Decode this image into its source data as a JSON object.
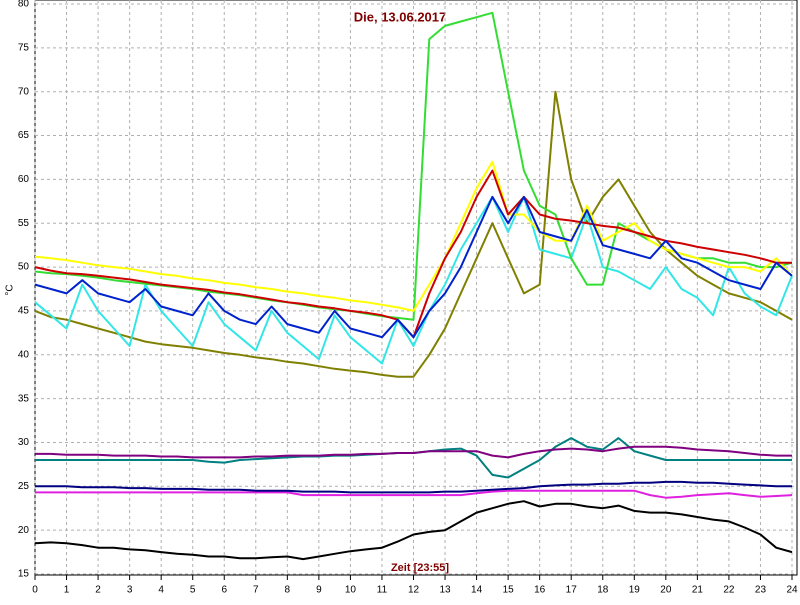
{
  "chart_data": {
    "type": "line",
    "title": "Die, 13.06.2017",
    "y_label": "°C",
    "x_label": "Zeit [23:55]",
    "x": [
      0,
      0.5,
      1,
      1.5,
      2,
      2.5,
      3,
      3.5,
      4,
      4.5,
      5,
      5.5,
      6,
      6.5,
      7,
      7.5,
      8,
      8.5,
      9,
      9.5,
      10,
      10.5,
      11,
      11.5,
      12,
      12.5,
      13,
      13.5,
      14,
      14.5,
      15,
      15.5,
      16,
      16.5,
      17,
      17.5,
      18,
      18.5,
      19,
      19.5,
      20,
      20.5,
      21,
      21.5,
      22,
      22.5,
      23,
      23.5,
      24
    ],
    "xlim": [
      0,
      24
    ],
    "xticks": [
      0,
      1,
      2,
      3,
      4,
      5,
      6,
      7,
      8,
      9,
      10,
      11,
      12,
      13,
      14,
      15,
      16,
      17,
      18,
      19,
      20,
      21,
      22,
      23,
      24
    ],
    "ylim": [
      15,
      80
    ],
    "yticks": [
      15,
      20,
      25,
      30,
      35,
      40,
      45,
      50,
      55,
      60,
      65,
      70,
      75,
      80
    ],
    "grid": true,
    "series": [
      {
        "color": "#000000",
        "values": [
          18.5,
          18.6,
          18.5,
          18.3,
          18,
          18,
          17.8,
          17.7,
          17.5,
          17.3,
          17.2,
          17,
          17,
          16.8,
          16.8,
          16.9,
          17,
          16.7,
          17,
          17.3,
          17.6,
          17.8,
          18,
          18.7,
          19.5,
          19.8,
          20,
          21,
          22,
          22.5,
          23,
          23.3,
          22.7,
          23,
          23,
          22.7,
          22.5,
          22.8,
          22.2,
          22,
          22,
          21.8,
          21.5,
          21.2,
          21,
          20.3,
          19.5,
          18,
          17.5
        ]
      },
      {
        "color": "#e020e0",
        "values": [
          24.3,
          24.3,
          24.3,
          24.3,
          24.3,
          24.3,
          24.3,
          24.3,
          24.3,
          24.3,
          24.3,
          24.3,
          24.3,
          24.3,
          24.3,
          24.3,
          24.3,
          24,
          24,
          24,
          24,
          24,
          24,
          24,
          24,
          24,
          24,
          24,
          24.2,
          24.4,
          24.5,
          24.5,
          24.5,
          24.5,
          24.5,
          24.5,
          24.5,
          24.5,
          24.5,
          24,
          23.7,
          23.8,
          24,
          24.1,
          24.2,
          24,
          23.8,
          23.9,
          24
        ]
      },
      {
        "color": "#000080",
        "values": [
          25,
          25,
          25,
          24.9,
          24.9,
          24.9,
          24.8,
          24.8,
          24.7,
          24.7,
          24.7,
          24.6,
          24.6,
          24.6,
          24.5,
          24.5,
          24.5,
          24.4,
          24.4,
          24.4,
          24.3,
          24.3,
          24.3,
          24.3,
          24.3,
          24.3,
          24.4,
          24.4,
          24.5,
          24.6,
          24.7,
          24.8,
          25,
          25.1,
          25.2,
          25.2,
          25.3,
          25.3,
          25.4,
          25.4,
          25.5,
          25.5,
          25.4,
          25.4,
          25.3,
          25.2,
          25.1,
          25,
          25
        ]
      },
      {
        "color": "#008080",
        "values": [
          28,
          28,
          28,
          28,
          28,
          28,
          28,
          28,
          28,
          28,
          28,
          27.8,
          27.7,
          28,
          28.1,
          28.2,
          28.3,
          28.4,
          28.4,
          28.5,
          28.5,
          28.6,
          28.7,
          28.8,
          28.8,
          29,
          29.2,
          29.3,
          28.5,
          26.3,
          26,
          27,
          28,
          29.5,
          30.5,
          29.5,
          29.2,
          30.5,
          29,
          28.5,
          28,
          28,
          28,
          28,
          28,
          28,
          28,
          28,
          28
        ]
      },
      {
        "color": "#800080",
        "values": [
          28.7,
          28.7,
          28.6,
          28.6,
          28.6,
          28.5,
          28.5,
          28.5,
          28.4,
          28.4,
          28.3,
          28.3,
          28.3,
          28.3,
          28.4,
          28.4,
          28.5,
          28.5,
          28.5,
          28.6,
          28.6,
          28.7,
          28.7,
          28.8,
          28.8,
          29,
          29,
          29,
          29,
          28.5,
          28.3,
          28.7,
          29,
          29.2,
          29.3,
          29.2,
          29,
          29.3,
          29.5,
          29.5,
          29.5,
          29.4,
          29.2,
          29.1,
          29,
          28.8,
          28.6,
          28.5,
          28.5
        ]
      },
      {
        "color": "#808000",
        "values": [
          45,
          44.3,
          44,
          43.5,
          43,
          42.5,
          42,
          41.5,
          41.2,
          41,
          40.8,
          40.5,
          40.2,
          40,
          39.7,
          39.5,
          39.2,
          39,
          38.7,
          38.4,
          38.2,
          38,
          37.7,
          37.5,
          37.5,
          40,
          43,
          47,
          51,
          55,
          51,
          47,
          48,
          70,
          60,
          55,
          58,
          60,
          57,
          54,
          52,
          50.5,
          49,
          48,
          47,
          46.5,
          46,
          45,
          44
        ]
      },
      {
        "color": "#33e6e6",
        "values": [
          46,
          44.5,
          43,
          48,
          45,
          43,
          41,
          48,
          45,
          43,
          41,
          46,
          43.5,
          42,
          40.5,
          45,
          42.5,
          41,
          39.5,
          44.5,
          42,
          40.5,
          39,
          44,
          41,
          45,
          48,
          52,
          55,
          58,
          54,
          58,
          52,
          51.5,
          51,
          56,
          50,
          49.5,
          48.5,
          47.5,
          50,
          47.5,
          46.5,
          44.5,
          50,
          47,
          45.5,
          44.5,
          49
        ]
      },
      {
        "color": "#33dd33",
        "values": [
          49.5,
          49.3,
          49.2,
          49,
          48.8,
          48.5,
          48.3,
          48.1,
          47.9,
          47.7,
          47.5,
          47.2,
          47,
          46.8,
          46.5,
          46.2,
          46,
          45.7,
          45.4,
          45.2,
          45,
          44.7,
          44.4,
          44.2,
          44,
          76,
          77.5,
          78,
          78.5,
          79,
          70,
          61,
          57,
          56,
          51,
          48,
          48,
          55,
          54,
          53,
          52,
          51.5,
          51,
          51,
          50.5,
          50.5,
          50,
          50,
          50.5
        ]
      },
      {
        "color": "#ffff00",
        "values": [
          51.2,
          51,
          50.8,
          50.5,
          50.2,
          50,
          49.8,
          49.5,
          49.2,
          49,
          48.7,
          48.5,
          48.2,
          48,
          47.7,
          47.5,
          47.2,
          47,
          46.7,
          46.5,
          46.2,
          46,
          45.7,
          45.4,
          45,
          48,
          51,
          55,
          59,
          62,
          56,
          56,
          54,
          53,
          53,
          57,
          53,
          54,
          55,
          53,
          52,
          51.5,
          51,
          50.5,
          50,
          50,
          49.5,
          51,
          49
        ]
      },
      {
        "color": "#cc0000",
        "values": [
          50,
          49.6,
          49.3,
          49.2,
          49,
          48.8,
          48.6,
          48.3,
          48,
          47.8,
          47.6,
          47.4,
          47.1,
          46.9,
          46.6,
          46.3,
          46,
          45.8,
          45.5,
          45.3,
          45,
          44.8,
          44.5,
          44,
          42,
          47,
          51,
          54,
          58,
          61,
          56,
          58,
          56,
          55.5,
          55.3,
          55,
          54.7,
          54.5,
          54,
          53.5,
          53,
          52.7,
          52.3,
          52,
          51.7,
          51.4,
          51,
          50.5,
          50.5
        ]
      },
      {
        "color": "#0022cc",
        "values": [
          48,
          47.5,
          47,
          48.5,
          47,
          46.5,
          46,
          47.5,
          45.5,
          45,
          44.5,
          47,
          45,
          44,
          43.5,
          45.5,
          43.5,
          43,
          42.5,
          45,
          43,
          42.5,
          42,
          44,
          42,
          45,
          47,
          50,
          54,
          58,
          55,
          58,
          54,
          53.5,
          53,
          56.5,
          52.5,
          52,
          51.5,
          51,
          53,
          51,
          50.5,
          49.5,
          48.5,
          48,
          47.5,
          50.5,
          49
        ]
      }
    ]
  }
}
